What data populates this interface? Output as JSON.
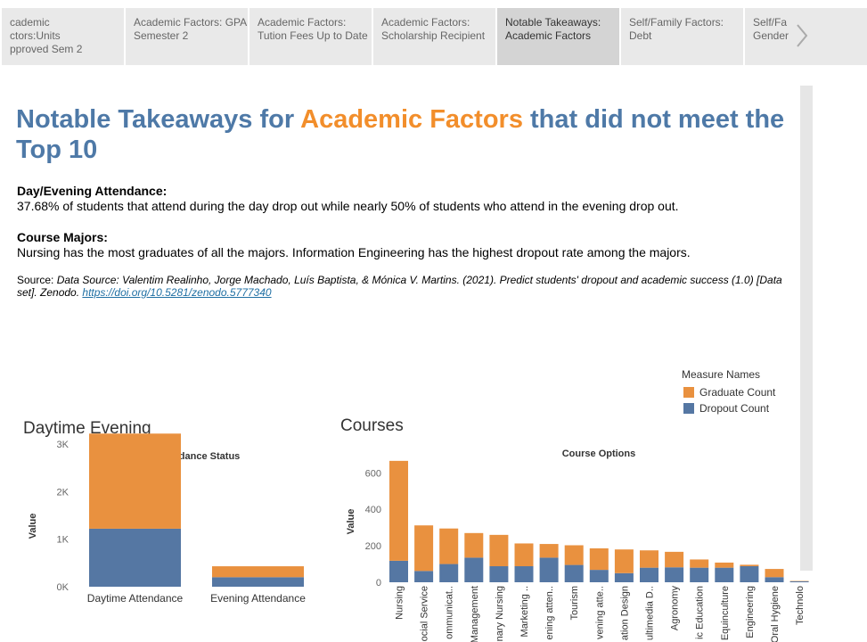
{
  "tabs": [
    {
      "line1": "cademic",
      "line2": "ctors:Units",
      "line3": "pproved Sem 2"
    },
    {
      "line1": "Academic Factors: GPA",
      "line2": "Semester 2",
      "line3": ""
    },
    {
      "line1": "Academic Factors:",
      "line2": "Tution Fees Up to Date",
      "line3": ""
    },
    {
      "line1": "Academic Factors:",
      "line2": "Scholarship Recipient",
      "line3": ""
    },
    {
      "line1": "Notable Takeaways:",
      "line2": "Academic Factors",
      "line3": "",
      "active": true
    },
    {
      "line1": "Self/Family Factors:",
      "line2": "Debt",
      "line3": ""
    },
    {
      "line1": "Self/Fa",
      "line2": "Gender",
      "line3": ""
    }
  ],
  "title": {
    "part1": "Notable Takeaways for ",
    "accent": "Academic Factors",
    "part2": " that did not meet the Top 10"
  },
  "sections": {
    "attendance_heading": "Day/Evening Attendance:",
    "attendance_text": "37.68% of students that attend during the day drop out while nearly  50% of students who attend in the evening drop out.",
    "majors_heading": "Course Majors:",
    "majors_text": "Nursing has the most graduates of all the majors. Information Engineering has the highest dropout rate among the majors."
  },
  "source": {
    "label": "Source: ",
    "citation": "Data Source: Valentim Realinho, Jorge Machado, Luís Baptista, & Mónica V. Martins. (2021). Predict students' dropout and academic success (1.0) [Data set]. Zenodo. ",
    "link": "https://doi.org/10.5281/zenodo.5777340"
  },
  "legend": {
    "title": "Measure Names",
    "items": [
      {
        "label": "Graduate Count",
        "color": "#f28e2b"
      },
      {
        "label": "Dropout Count",
        "color": "#4e79a7"
      }
    ]
  },
  "colors": {
    "graduate": "#e9913f",
    "dropout": "#5577a3",
    "title_blue": "#4e79a7",
    "title_orange": "#f28e2b"
  },
  "chart_data": [
    {
      "type": "bar",
      "stacked": true,
      "chart_title": "Daytime Evening",
      "title": "Attendance Status",
      "ylabel": "Value",
      "ylim": [
        0,
        3300
      ],
      "yticks": [
        {
          "v": 0,
          "label": "0K"
        },
        {
          "v": 1000,
          "label": "1K"
        },
        {
          "v": 2000,
          "label": "2K"
        },
        {
          "v": 3000,
          "label": "3K"
        }
      ],
      "categories": [
        "Daytime Attendance",
        "Evening Attendance"
      ],
      "series": [
        {
          "name": "Dropout Count",
          "values": [
            1220,
            200
          ]
        },
        {
          "name": "Graduate Count",
          "values": [
            2000,
            230
          ]
        }
      ]
    },
    {
      "type": "bar",
      "stacked": true,
      "chart_title": "Courses",
      "title": "Course Options",
      "ylabel": "Value",
      "ylim": [
        0,
        680
      ],
      "yticks": [
        {
          "v": 0,
          "label": "0"
        },
        {
          "v": 200,
          "label": "200"
        },
        {
          "v": 400,
          "label": "400"
        },
        {
          "v": 600,
          "label": "600"
        }
      ],
      "categories": [
        "Nursing",
        "ocial Service",
        "ommunicat..",
        "Management",
        "nary Nursing",
        "Marketing ..",
        "ening atten..",
        "Tourism",
        "vening atte..",
        "ation Design",
        "ultimedia D..",
        "Agronomy",
        "ic Education",
        "Equinculture",
        "Engineering",
        "Oral Hygiene",
        "Technolo"
      ],
      "series": [
        {
          "name": "Dropout Count",
          "values": [
            118,
            62,
            100,
            135,
            88,
            88,
            135,
            95,
            68,
            50,
            80,
            82,
            80,
            80,
            88,
            28,
            5
          ]
        },
        {
          "name": "Graduate Count",
          "values": [
            548,
            250,
            195,
            135,
            172,
            125,
            75,
            108,
            118,
            130,
            95,
            85,
            45,
            28,
            8,
            45,
            2
          ]
        }
      ]
    }
  ]
}
